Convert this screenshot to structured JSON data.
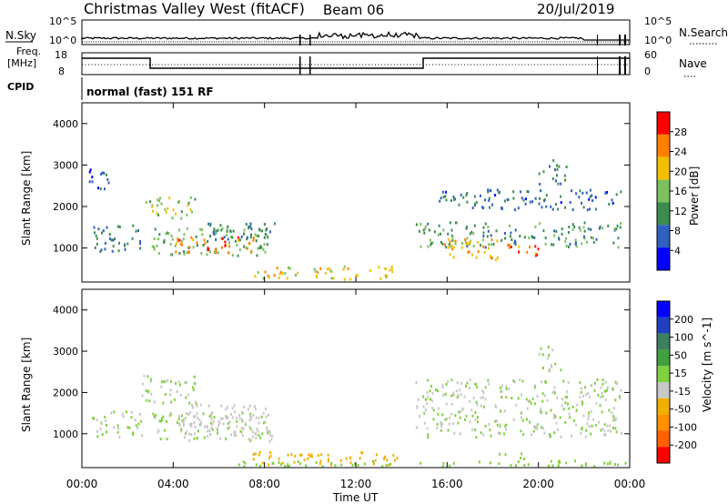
{
  "header": {
    "title": "Christmas Valley West (fitACF)",
    "beam": "Beam 06",
    "date": "20/Jul/2019"
  },
  "top_panels": {
    "nsky_label": "N.Sky",
    "nsky_ticks": [
      "10^5",
      "10^0"
    ],
    "nsearch_label": "N.Search",
    "nsearch_ticks": [
      "10^5",
      "10^0"
    ],
    "freq_label_1": "Freq.",
    "freq_label_2": "[MHz]",
    "freq_ticks": [
      "18",
      "8"
    ],
    "nave_label": "Nave",
    "nave_ticks": [
      "60",
      "0"
    ],
    "cpid_label": "CPID",
    "cpid_value": "normal (fast) 151 RF"
  },
  "chart_data": [
    {
      "type": "heatmap",
      "title": "",
      "ylabel": "Slant Range [km]",
      "ylim": [
        180,
        4500
      ],
      "yticks": [
        "4000",
        "3000",
        "2000",
        "1000"
      ],
      "colorbar_label": "Power [dB]",
      "colorbar_ticks": [
        "28",
        "24",
        "20",
        "16",
        "12",
        "8",
        "4"
      ],
      "colorbar_range": [
        0,
        32
      ],
      "colors": [
        "#0000ff",
        "#3060c0",
        "#3c8c50",
        "#7cc060",
        "#f0c000",
        "#ff8000",
        "#ff0000"
      ],
      "echo_regions": [
        {
          "t": [
            0.4,
            2.6
          ],
          "r": [
            900,
            1550
          ],
          "value": 10
        },
        {
          "t": [
            0.3,
            1.4
          ],
          "r": [
            2400,
            2900
          ],
          "value": 6
        },
        {
          "t": [
            2.6,
            5.0
          ],
          "r": [
            1700,
            2200
          ],
          "value": 16
        },
        {
          "t": [
            3.0,
            8.2
          ],
          "r": [
            800,
            1500
          ],
          "value": 14
        },
        {
          "t": [
            4.0,
            7.6
          ],
          "r": [
            850,
            1250
          ],
          "value": 26
        },
        {
          "t": [
            5.5,
            8.5
          ],
          "r": [
            1150,
            1600
          ],
          "value": 10
        },
        {
          "t": [
            7.5,
            13.8
          ],
          "r": [
            230,
            550
          ],
          "value": 20
        },
        {
          "t": [
            14.6,
            23.6
          ],
          "r": [
            1000,
            1600
          ],
          "value": 12
        },
        {
          "t": [
            15.6,
            23.6
          ],
          "r": [
            1900,
            2400
          ],
          "value": 8
        },
        {
          "t": [
            15.8,
            18.2
          ],
          "r": [
            700,
            1250
          ],
          "value": 22
        },
        {
          "t": [
            18.5,
            20.2
          ],
          "r": [
            800,
            1100
          ],
          "value": 26
        },
        {
          "t": [
            20.0,
            21.2
          ],
          "r": [
            2500,
            3100
          ],
          "value": 10
        }
      ]
    },
    {
      "type": "heatmap",
      "title": "",
      "ylabel": "Slant Range [km]",
      "ylim": [
        180,
        4500
      ],
      "yticks": [
        "4000",
        "3000",
        "2000",
        "1000"
      ],
      "xlabel": "Time UT",
      "xticks": [
        "00:00",
        "04:00",
        "08:00",
        "12:00",
        "16:00",
        "20:00",
        "00:00"
      ],
      "colorbar_label": "Velocity [m s^-1]",
      "colorbar_ticks": [
        "200",
        "100",
        "50",
        "15",
        "-15",
        "-50",
        "-100",
        "-200"
      ],
      "colorbar_range": [
        -250,
        250
      ],
      "colors": [
        "#ff0000",
        "#ff6000",
        "#ff9000",
        "#f0b000",
        "#c8c8c8",
        "#80d040",
        "#40a040",
        "#3c8060",
        "#2040c0",
        "#0000ff"
      ],
      "echo_regions": [
        {
          "t": [
            0.3,
            2.6
          ],
          "r": [
            900,
            1550
          ],
          "value": 0
        },
        {
          "t": [
            2.6,
            5.0
          ],
          "r": [
            1700,
            2400
          ],
          "value": 0
        },
        {
          "t": [
            3.0,
            8.2
          ],
          "r": [
            800,
            1500
          ],
          "value": 0
        },
        {
          "t": [
            4.4,
            8.3
          ],
          "r": [
            800,
            1700
          ],
          "value": -40
        },
        {
          "t": [
            7.4,
            13.8
          ],
          "r": [
            230,
            550
          ],
          "value": -60
        },
        {
          "t": [
            6.0,
            24.0
          ],
          "r": [
            190,
            330
          ],
          "value": 40
        },
        {
          "t": [
            14.6,
            23.6
          ],
          "r": [
            900,
            2300
          ],
          "value": 0
        },
        {
          "t": [
            18.0,
            19.5
          ],
          "r": [
            380,
            520
          ],
          "value": 40
        },
        {
          "t": [
            20.0,
            21.0
          ],
          "r": [
            2500,
            3100
          ],
          "value": 0
        }
      ]
    }
  ]
}
